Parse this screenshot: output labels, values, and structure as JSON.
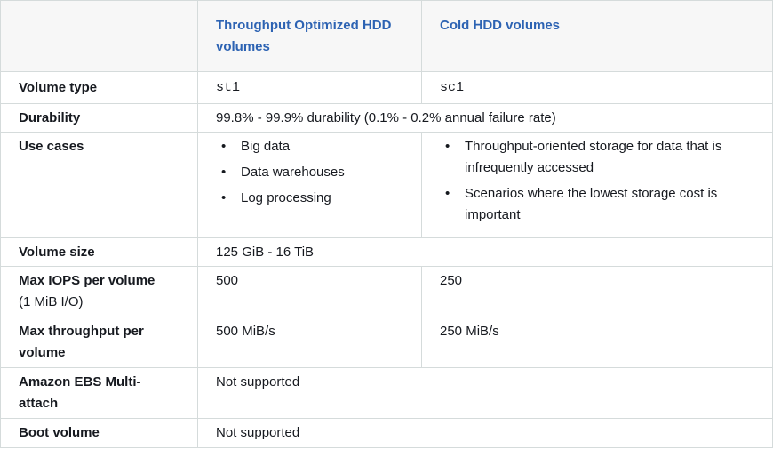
{
  "table": {
    "columns": [
      "",
      "Throughput Optimized HDD volumes",
      "Cold HDD volumes"
    ],
    "rows": {
      "volume_type": {
        "label": "Volume type",
        "st1": "st1",
        "sc1": "sc1"
      },
      "durability": {
        "label": "Durability",
        "value": "99.8% - 99.9% durability (0.1% - 0.2% annual failure rate)"
      },
      "use_cases": {
        "label": "Use cases",
        "st1": [
          "Big data",
          "Data warehouses",
          "Log processing"
        ],
        "sc1": [
          "Throughput-oriented storage for data that is infrequently accessed",
          "Scenarios where the lowest storage cost is important"
        ]
      },
      "volume_size": {
        "label": "Volume size",
        "value": "125 GiB - 16 TiB"
      },
      "max_iops": {
        "label": "Max IOPS per volume",
        "sublabel": "(1 MiB I/O)",
        "st1": "500",
        "sc1": "250"
      },
      "max_throughput": {
        "label": "Max throughput per volume",
        "st1": "500 MiB/s",
        "sc1": "250 MiB/s"
      },
      "multiattach": {
        "label": "Amazon EBS Multi-attach",
        "value": "Not supported"
      },
      "boot": {
        "label": "Boot volume",
        "value": "Not supported"
      }
    }
  },
  "colors": {
    "header_text": "#2d63b3",
    "header_bg": "#f7f7f7",
    "border": "#d5dbdb",
    "body_text": "#16191f"
  }
}
